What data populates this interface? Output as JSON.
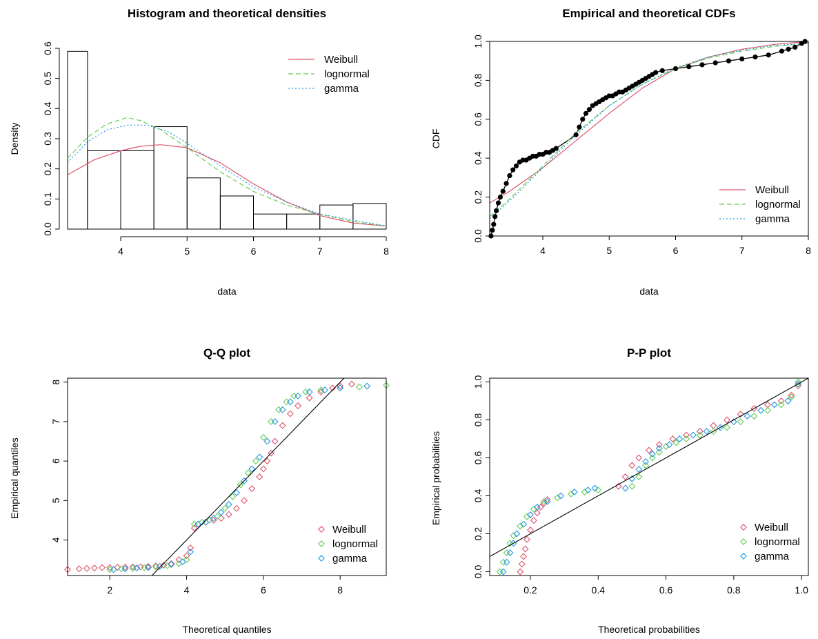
{
  "colors": {
    "weibull": "#DF536B",
    "lognormal": "#61D04F",
    "gamma": "#2297E6",
    "reference": "#000000"
  },
  "legend_entries": [
    "Weibull",
    "lognormal",
    "gamma"
  ],
  "chart_data": [
    {
      "id": "hist",
      "type": "bar",
      "title": "Histogram and theoretical densities",
      "xlabel": "data",
      "ylabel": "Density",
      "xlim": [
        3.2,
        8.0
      ],
      "ylim": [
        0,
        0.6
      ],
      "xticks": [
        4,
        5,
        6,
        7,
        8
      ],
      "yticks": [
        0.0,
        0.1,
        0.2,
        0.3,
        0.4,
        0.5,
        0.6
      ],
      "ytick_labels": [
        "0.0",
        "0.1",
        "0.2",
        "0.3",
        "0.4",
        "0.5",
        "0.6"
      ],
      "bins": [
        {
          "from": 3.0,
          "to": 3.5,
          "density": 0.59
        },
        {
          "from": 3.5,
          "to": 4.0,
          "density": 0.26
        },
        {
          "from": 4.0,
          "to": 4.5,
          "density": 0.26
        },
        {
          "from": 4.5,
          "to": 5.0,
          "density": 0.34
        },
        {
          "from": 5.0,
          "to": 5.5,
          "density": 0.17
        },
        {
          "from": 5.5,
          "to": 6.0,
          "density": 0.11
        },
        {
          "from": 6.0,
          "to": 6.5,
          "density": 0.05
        },
        {
          "from": 6.5,
          "to": 7.0,
          "density": 0.05
        },
        {
          "from": 7.0,
          "to": 7.5,
          "density": 0.08
        },
        {
          "from": 7.5,
          "to": 8.0,
          "density": 0.085
        }
      ],
      "series": [
        {
          "name": "Weibull",
          "x": [
            3.2,
            3.6,
            4.0,
            4.3,
            4.6,
            5.0,
            5.5,
            6.0,
            6.5,
            7.0,
            7.5,
            8.0
          ],
          "y": [
            0.18,
            0.23,
            0.26,
            0.275,
            0.28,
            0.27,
            0.22,
            0.15,
            0.09,
            0.045,
            0.02,
            0.01
          ]
        },
        {
          "name": "lognormal",
          "x": [
            3.2,
            3.5,
            3.8,
            4.1,
            4.3,
            4.6,
            5.0,
            5.5,
            6.0,
            6.5,
            7.0,
            7.5,
            8.0
          ],
          "y": [
            0.235,
            0.305,
            0.35,
            0.37,
            0.36,
            0.33,
            0.27,
            0.19,
            0.125,
            0.08,
            0.05,
            0.025,
            0.01
          ]
        },
        {
          "name": "gamma",
          "x": [
            3.2,
            3.5,
            3.8,
            4.1,
            4.4,
            4.7,
            5.0,
            5.5,
            6.0,
            6.5,
            7.0,
            7.5,
            8.0
          ],
          "y": [
            0.22,
            0.29,
            0.33,
            0.345,
            0.345,
            0.325,
            0.285,
            0.21,
            0.14,
            0.09,
            0.05,
            0.03,
            0.01
          ]
        }
      ],
      "legend_position": "top-right"
    },
    {
      "id": "cdf",
      "type": "line",
      "title": "Empirical and theoretical CDFs",
      "xlabel": "data",
      "ylabel": "CDF",
      "xlim": [
        3.2,
        8.0
      ],
      "ylim": [
        0,
        1
      ],
      "xticks": [
        4,
        5,
        6,
        7,
        8
      ],
      "yticks": [
        0.0,
        0.2,
        0.4,
        0.6,
        0.8,
        1.0
      ],
      "ytick_labels": [
        "0.0",
        "0.2",
        "0.4",
        "0.6",
        "0.8",
        "1.0"
      ],
      "empirical": {
        "x": [
          3.22,
          3.24,
          3.26,
          3.28,
          3.3,
          3.33,
          3.36,
          3.4,
          3.45,
          3.5,
          3.55,
          3.6,
          3.65,
          3.7,
          3.75,
          3.8,
          3.85,
          3.9,
          3.95,
          4.0,
          4.05,
          4.1,
          4.15,
          4.2,
          4.5,
          4.55,
          4.6,
          4.65,
          4.7,
          4.75,
          4.8,
          4.85,
          4.9,
          4.95,
          5.0,
          5.05,
          5.1,
          5.15,
          5.2,
          5.25,
          5.3,
          5.35,
          5.4,
          5.45,
          5.5,
          5.55,
          5.6,
          5.65,
          5.7,
          5.8,
          6.0,
          6.2,
          6.4,
          6.6,
          6.8,
          7.0,
          7.2,
          7.4,
          7.6,
          7.7,
          7.8,
          7.9,
          7.95
        ],
        "y": [
          0.0,
          0.03,
          0.06,
          0.1,
          0.13,
          0.17,
          0.2,
          0.23,
          0.27,
          0.31,
          0.34,
          0.36,
          0.38,
          0.39,
          0.39,
          0.4,
          0.41,
          0.41,
          0.42,
          0.42,
          0.43,
          0.43,
          0.44,
          0.45,
          0.52,
          0.56,
          0.6,
          0.63,
          0.65,
          0.67,
          0.68,
          0.69,
          0.7,
          0.71,
          0.72,
          0.72,
          0.73,
          0.74,
          0.74,
          0.75,
          0.76,
          0.77,
          0.78,
          0.79,
          0.8,
          0.81,
          0.82,
          0.83,
          0.84,
          0.85,
          0.86,
          0.87,
          0.88,
          0.89,
          0.9,
          0.91,
          0.92,
          0.93,
          0.95,
          0.96,
          0.97,
          0.99,
          1.0
        ]
      },
      "series": [
        {
          "name": "Weibull",
          "x": [
            3.2,
            3.5,
            4.0,
            4.5,
            5.0,
            5.5,
            6.0,
            6.5,
            7.0,
            7.5,
            8.0
          ],
          "y": [
            0.17,
            0.23,
            0.35,
            0.49,
            0.63,
            0.76,
            0.86,
            0.92,
            0.96,
            0.985,
            1.0
          ]
        },
        {
          "name": "lognormal",
          "x": [
            3.2,
            3.5,
            4.0,
            4.5,
            5.0,
            5.5,
            6.0,
            6.5,
            7.0,
            7.5,
            8.0
          ],
          "y": [
            0.1,
            0.19,
            0.36,
            0.53,
            0.67,
            0.78,
            0.86,
            0.915,
            0.95,
            0.975,
            0.99
          ]
        },
        {
          "name": "gamma",
          "x": [
            3.2,
            3.5,
            4.0,
            4.5,
            5.0,
            5.5,
            6.0,
            6.5,
            7.0,
            7.5,
            8.0
          ],
          "y": [
            0.09,
            0.18,
            0.35,
            0.52,
            0.67,
            0.78,
            0.865,
            0.92,
            0.955,
            0.98,
            0.99
          ]
        }
      ],
      "legend_position": "bottom-right"
    },
    {
      "id": "qq",
      "type": "scatter",
      "title": "Q-Q plot",
      "xlabel": "Theoretical quantiles",
      "ylabel": "Empirical quantiles",
      "xlim": [
        0.9,
        9.2
      ],
      "ylim": [
        3.1,
        8.1
      ],
      "xticks": [
        2,
        4,
        6,
        8
      ],
      "yticks": [
        4,
        5,
        6,
        7,
        8
      ],
      "reference_line": {
        "x": [
          3.0,
          8.2
        ],
        "y": [
          3.0,
          8.2
        ]
      },
      "series": [
        {
          "name": "Weibull",
          "x": [
            0.9,
            1.2,
            1.4,
            1.6,
            1.8,
            2.0,
            2.2,
            2.4,
            2.6,
            2.8,
            3.0,
            3.2,
            3.4,
            3.6,
            3.8,
            4.0,
            4.1,
            4.2,
            4.3,
            4.5,
            4.7,
            4.9,
            5.1,
            5.3,
            5.5,
            5.7,
            5.9,
            6.0,
            6.1,
            6.2,
            6.3,
            6.5,
            6.7,
            6.9,
            7.2,
            7.5,
            7.8,
            8.0,
            8.3
          ],
          "y": [
            3.25,
            3.27,
            3.28,
            3.29,
            3.3,
            3.3,
            3.31,
            3.31,
            3.32,
            3.32,
            3.33,
            3.34,
            3.36,
            3.4,
            3.5,
            3.6,
            3.8,
            4.3,
            4.4,
            4.45,
            4.5,
            4.55,
            4.65,
            4.8,
            5.0,
            5.3,
            5.6,
            5.8,
            6.0,
            6.2,
            6.5,
            6.9,
            7.2,
            7.4,
            7.6,
            7.75,
            7.85,
            7.9,
            7.95
          ]
        },
        {
          "name": "lognormal",
          "x": [
            2.0,
            2.3,
            2.6,
            2.9,
            3.2,
            3.5,
            3.8,
            4.0,
            4.2,
            4.4,
            4.6,
            4.8,
            5.0,
            5.2,
            5.4,
            5.6,
            5.8,
            6.0,
            6.2,
            6.4,
            6.6,
            6.8,
            7.1,
            7.5,
            8.0,
            8.5,
            9.2
          ],
          "y": [
            3.25,
            3.27,
            3.28,
            3.3,
            3.32,
            3.35,
            3.4,
            3.5,
            4.4,
            4.45,
            4.5,
            4.6,
            4.8,
            5.1,
            5.4,
            5.7,
            6.0,
            6.6,
            7.0,
            7.3,
            7.5,
            7.65,
            7.75,
            7.8,
            7.85,
            7.88,
            7.92
          ]
        },
        {
          "name": "gamma",
          "x": [
            2.1,
            2.4,
            2.7,
            3.0,
            3.3,
            3.6,
            3.9,
            4.1,
            4.3,
            4.5,
            4.7,
            4.9,
            5.1,
            5.3,
            5.5,
            5.7,
            5.9,
            6.1,
            6.3,
            6.5,
            6.7,
            6.9,
            7.2,
            7.6,
            8.0,
            8.7
          ],
          "y": [
            3.25,
            3.27,
            3.29,
            3.3,
            3.33,
            3.38,
            3.45,
            3.7,
            4.4,
            4.45,
            4.55,
            4.7,
            4.9,
            5.2,
            5.5,
            5.8,
            6.1,
            6.5,
            7.0,
            7.3,
            7.5,
            7.65,
            7.75,
            7.8,
            7.85,
            7.9
          ]
        }
      ],
      "legend_position": "bottom-right"
    },
    {
      "id": "pp",
      "type": "scatter",
      "title": "P-P plot",
      "xlabel": "Theoretical probabilities",
      "ylabel": "Empirical probabilities",
      "xlim": [
        0.08,
        1.02
      ],
      "ylim": [
        -0.02,
        1.02
      ],
      "xticks": [
        0.2,
        0.4,
        0.6,
        0.8,
        1.0
      ],
      "xtick_labels": [
        "0.2",
        "0.4",
        "0.6",
        "0.8",
        "1.0"
      ],
      "yticks": [
        0.0,
        0.2,
        0.4,
        0.6,
        0.8,
        1.0
      ],
      "ytick_labels": [
        "0.0",
        "0.2",
        "0.4",
        "0.6",
        "0.8",
        "1.0"
      ],
      "reference_line": {
        "x": [
          0.0,
          1.1
        ],
        "y": [
          0.0,
          1.1
        ]
      },
      "series": [
        {
          "name": "Weibull",
          "x": [
            0.17,
            0.175,
            0.18,
            0.185,
            0.19,
            0.2,
            0.21,
            0.22,
            0.23,
            0.24,
            0.25,
            0.46,
            0.48,
            0.5,
            0.52,
            0.55,
            0.58,
            0.62,
            0.66,
            0.7,
            0.74,
            0.78,
            0.82,
            0.86,
            0.9,
            0.94,
            0.97,
            0.99
          ],
          "y": [
            0.0,
            0.04,
            0.08,
            0.12,
            0.17,
            0.22,
            0.27,
            0.31,
            0.34,
            0.36,
            0.38,
            0.45,
            0.5,
            0.56,
            0.6,
            0.64,
            0.67,
            0.7,
            0.72,
            0.74,
            0.77,
            0.8,
            0.83,
            0.86,
            0.88,
            0.9,
            0.93,
            0.98
          ]
        },
        {
          "name": "lognormal",
          "x": [
            0.11,
            0.12,
            0.13,
            0.14,
            0.15,
            0.17,
            0.19,
            0.21,
            0.24,
            0.28,
            0.32,
            0.36,
            0.4,
            0.5,
            0.52,
            0.54,
            0.56,
            0.58,
            0.6,
            0.63,
            0.66,
            0.7,
            0.74,
            0.78,
            0.82,
            0.86,
            0.9,
            0.94,
            0.97,
            0.99
          ],
          "y": [
            0.0,
            0.05,
            0.1,
            0.15,
            0.19,
            0.24,
            0.29,
            0.33,
            0.37,
            0.39,
            0.41,
            0.42,
            0.43,
            0.45,
            0.5,
            0.56,
            0.6,
            0.63,
            0.66,
            0.68,
            0.7,
            0.72,
            0.74,
            0.76,
            0.79,
            0.82,
            0.85,
            0.88,
            0.92,
            1.0
          ]
        },
        {
          "name": "gamma",
          "x": [
            0.12,
            0.13,
            0.14,
            0.15,
            0.16,
            0.18,
            0.2,
            0.22,
            0.25,
            0.29,
            0.33,
            0.37,
            0.39,
            0.48,
            0.5,
            0.52,
            0.54,
            0.56,
            0.58,
            0.61,
            0.64,
            0.68,
            0.72,
            0.76,
            0.8,
            0.84,
            0.88,
            0.92,
            0.96,
            0.99
          ],
          "y": [
            0.0,
            0.05,
            0.1,
            0.15,
            0.2,
            0.25,
            0.3,
            0.34,
            0.37,
            0.4,
            0.42,
            0.43,
            0.44,
            0.44,
            0.49,
            0.54,
            0.58,
            0.62,
            0.65,
            0.67,
            0.7,
            0.72,
            0.74,
            0.76,
            0.79,
            0.82,
            0.85,
            0.88,
            0.9,
            0.99
          ]
        }
      ],
      "legend_position": "bottom-right"
    }
  ]
}
